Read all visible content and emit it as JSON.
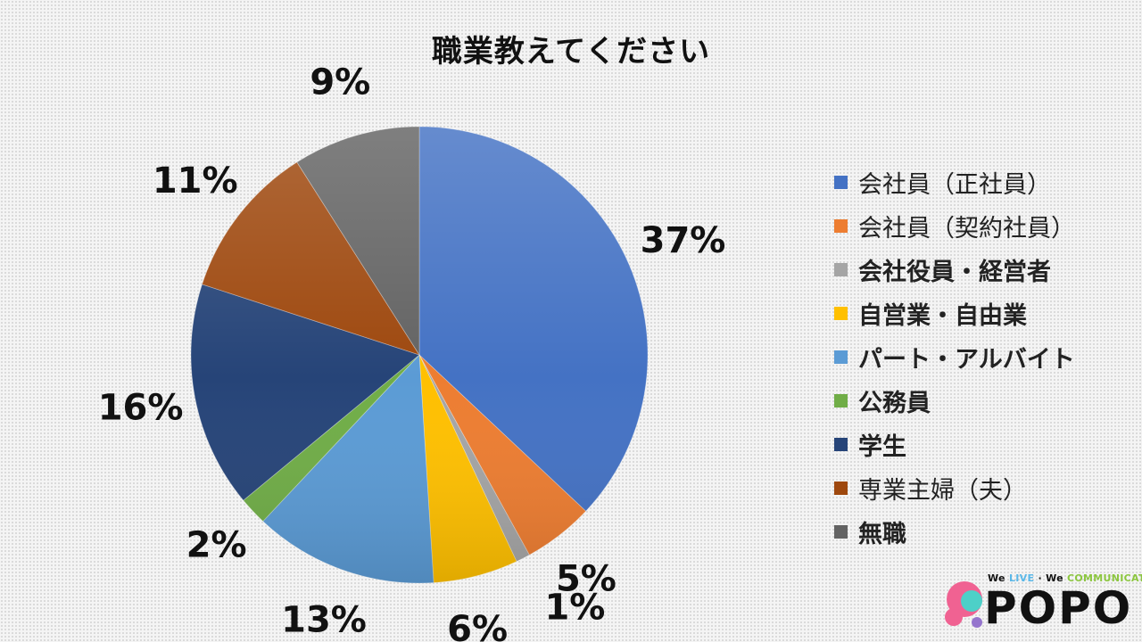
{
  "chart_data": {
    "type": "pie",
    "title": "職業教えてください",
    "slices": [
      {
        "label": "会社員（正社員）",
        "value": 37,
        "display": "37%",
        "color": "#4472C4"
      },
      {
        "label": "会社員（契約社員）",
        "value": 5,
        "display": "5%",
        "color": "#ED7D31"
      },
      {
        "label": "会社役員・経営者",
        "value": 1,
        "display": "1%",
        "color": "#A5A5A5"
      },
      {
        "label": "自営業・自由業",
        "value": 6,
        "display": "6%",
        "color": "#FFC000"
      },
      {
        "label": "パート・アルバイト",
        "value": 13,
        "display": "13%",
        "color": "#5B9BD5"
      },
      {
        "label": "公務員",
        "value": 2,
        "display": "2%",
        "color": "#70AD47"
      },
      {
        "label": "学生",
        "value": 16,
        "display": "16%",
        "color": "#264478"
      },
      {
        "label": "専業主婦（夫）",
        "value": 11,
        "display": "11%",
        "color": "#9E480E"
      },
      {
        "label": "無職",
        "value": 9,
        "display": "9%",
        "color": "#636363"
      }
    ],
    "legend_position": "right"
  },
  "logo": {
    "tag_prefix": "We",
    "tag_live": "LIVE",
    "tag_sep": "·",
    "tag_mid": "We",
    "tag_comm": "COMMUNICATE",
    "word": "POPO"
  }
}
